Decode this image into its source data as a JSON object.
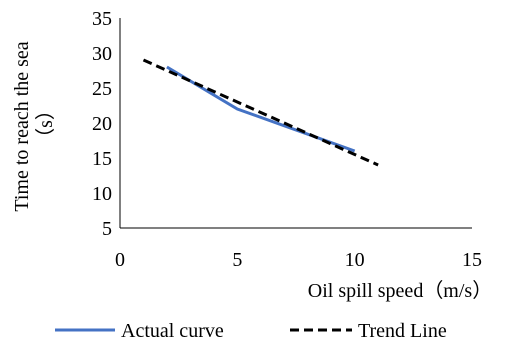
{
  "chart_data": {
    "type": "line",
    "xlabel": "Oil spill speed（m/s）",
    "ylabel_lines": [
      "Time to reach the sea",
      "（s）"
    ],
    "xlim": [
      0,
      15
    ],
    "ylim": [
      5,
      35
    ],
    "xticks": [
      0,
      5,
      10,
      15
    ],
    "yticks": [
      5,
      10,
      15,
      20,
      25,
      30,
      35
    ],
    "grid": false,
    "legend_position": "bottom",
    "series": [
      {
        "name": "Actual curve",
        "style": "solid",
        "color": "#4472C4",
        "x": [
          2,
          5,
          10
        ],
        "y": [
          28,
          22,
          16
        ]
      },
      {
        "name": "Trend Line",
        "style": "dashed",
        "color": "#000000",
        "x": [
          1,
          11
        ],
        "y": [
          29,
          14
        ]
      }
    ]
  }
}
